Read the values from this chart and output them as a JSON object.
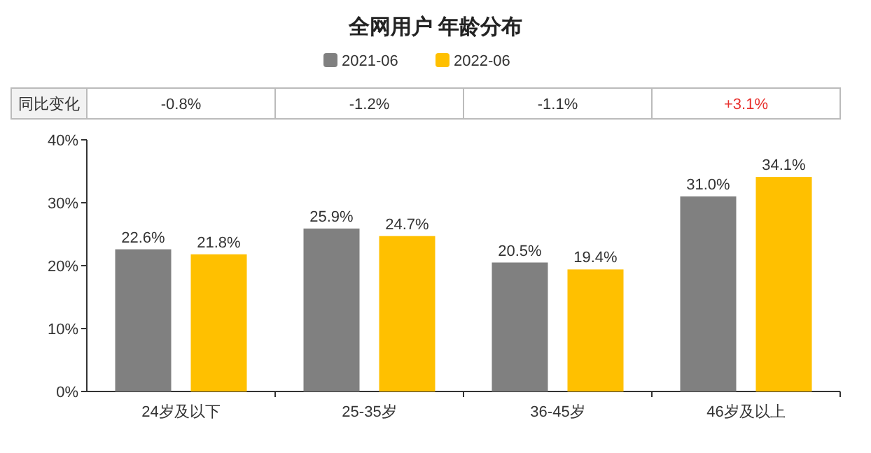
{
  "chart_data": {
    "type": "bar",
    "title": "全网用户 年龄分布",
    "categories": [
      "24岁及以下",
      "25-35岁",
      "36-45岁",
      "46岁及以上"
    ],
    "series": [
      {
        "name": "2021-06",
        "color": "#808080",
        "values": [
          22.6,
          25.9,
          20.5,
          31.0
        ],
        "value_labels": [
          "22.6%",
          "25.9%",
          "20.5%",
          "31.0%"
        ]
      },
      {
        "name": "2022-06",
        "color": "#ffc000",
        "values": [
          21.8,
          24.7,
          19.4,
          34.1
        ],
        "value_labels": [
          "21.8%",
          "24.7%",
          "19.4%",
          "34.1%"
        ]
      }
    ],
    "ylim": [
      0,
      40
    ],
    "yticks": [
      {
        "value": 0,
        "label": "0%"
      },
      {
        "value": 10,
        "label": "10%"
      },
      {
        "value": 20,
        "label": "20%"
      },
      {
        "value": 30,
        "label": "30%"
      },
      {
        "value": 40,
        "label": "40%"
      }
    ],
    "legend": "top",
    "annotations": [
      "同比变化",
      "-0.8%",
      "-1.2%",
      "-1.1%",
      "+3.1%"
    ]
  }
}
